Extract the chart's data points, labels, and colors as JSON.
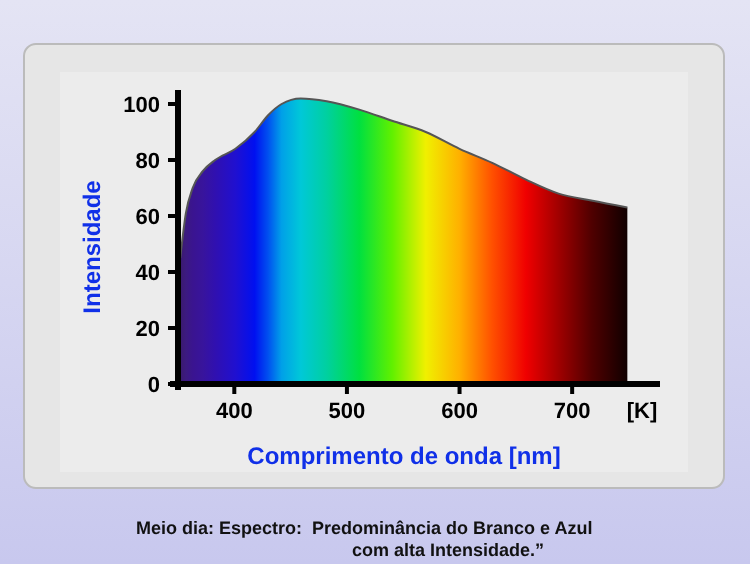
{
  "chart_data": {
    "type": "area",
    "xlabel": "Comprimento de onda [nm]",
    "ylabel": "Intensidade",
    "x": [
      352,
      357,
      363,
      372,
      383,
      401,
      418,
      430,
      442,
      459,
      482,
      511,
      540,
      570,
      600,
      629,
      659,
      688,
      717,
      749
    ],
    "values": [
      45,
      61,
      70,
      76,
      80,
      84,
      90,
      96,
      100,
      102,
      101,
      98,
      94,
      90,
      84,
      79,
      73,
      68,
      65.5,
      63
    ],
    "colors": [
      "#3a1a6e",
      "#3c1a80",
      "#3a1490",
      "#38149c",
      "#3010b0",
      "#2010d0",
      "#0010f0",
      "#0050f0",
      "#00a0e8",
      "#00c8d8",
      "#00d0a0",
      "#00e040",
      "#60f000",
      "#f0f000",
      "#ffb000",
      "#ff5000",
      "#f00000",
      "#a00000",
      "#500000",
      "#100000"
    ],
    "xlim": [
      350,
      778
    ],
    "xticks": [
      400,
      500,
      600,
      700,
      {
        "value": 762,
        "label": "[K]"
      }
    ],
    "ylim": [
      0,
      105
    ],
    "yticks": [
      0,
      20,
      40,
      60,
      80,
      100
    ],
    "grid": false,
    "annotations": [
      "Meio dia: Espectro:  Predominância do Branco e Azul",
      "com alta Intensidade.”"
    ]
  }
}
